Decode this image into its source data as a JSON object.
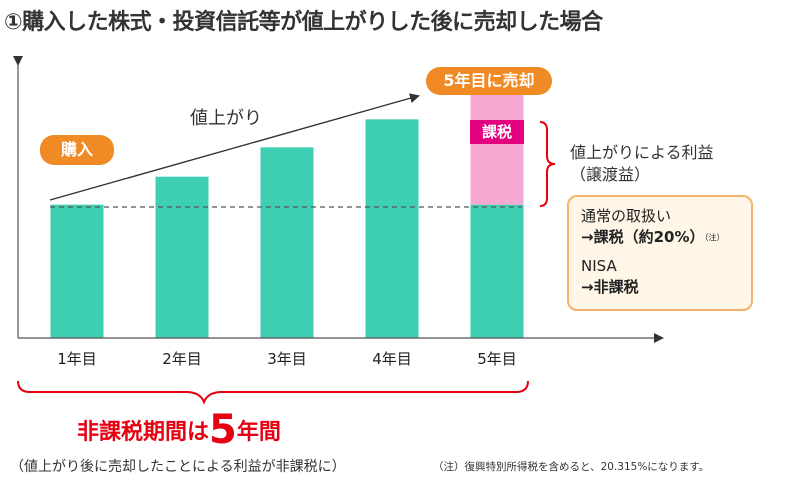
{
  "title": "①購入した株式・投資信託等が値上がりした後に売却した場合",
  "labels": {
    "buy": "購入",
    "sell": "5年目に売却",
    "rise": "値上がり",
    "tax_badge": "課税",
    "gain_line1": "値上がりによる利益",
    "gain_line2": "（譲渡益）"
  },
  "tax_box": {
    "normal_heading": "通常の取扱い",
    "normal_value": "→課税（約20%）",
    "normal_note_mark": "（注）",
    "nisa_heading": "NISA",
    "nisa_value": "→非課税"
  },
  "period": {
    "prefix": "非課税期間は",
    "number": "5",
    "suffix": "年間"
  },
  "bottom_note": "（値上がり後に売却したことによる利益が非課税に）",
  "footnote": "（注）復興特別所得税を含めると、20.315%になります。",
  "colors": {
    "bar": "#3ecfb2",
    "taxed_portion": "#f7a8d2",
    "tax_badge": "#e4007f",
    "pill": "#f08a24",
    "accent_red": "#e60012"
  },
  "chart_data": {
    "type": "bar",
    "categories": [
      "1年目",
      "2年目",
      "3年目",
      "4年目",
      "5年目"
    ],
    "series": [
      {
        "values": [
          100,
          121,
          143,
          164,
          100
        ]
      },
      {
        "values": [
          0,
          0,
          0,
          0,
          90
        ]
      }
    ],
    "ylim": [
      0,
      210
    ],
    "grid": false
  }
}
